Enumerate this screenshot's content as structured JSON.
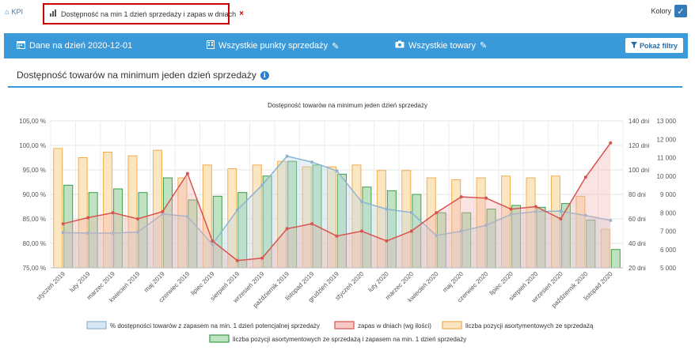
{
  "topbar": {
    "kpi_label": "KPI",
    "tab_label": "Dostępność na min 1 dzień sprzedaży i zapas w dniach",
    "tab_close": "×",
    "colors_label": "Kolory"
  },
  "filterbar": {
    "date_label": "Dane na dzień 2020-12-01",
    "points_label": "Wszystkie punkty sprzedaży",
    "goods_label": "Wszystkie towary",
    "show_filters_label": "Pokaż filtry"
  },
  "section": {
    "title": "Dostępność towarów na minimum jeden dzień sprzedaży"
  },
  "colors": {
    "accent": "#3a9ad9",
    "availability": "#8cb4d0",
    "stock_days": "#d9534f",
    "assortment": "#f0ad4e",
    "assortment_stock": "#3c9c47"
  },
  "chart_data": {
    "type": "bar",
    "title": "Dostępność towarów na minimum jeden dzień sprzedaży",
    "categories": [
      "styczeń 2019",
      "luty 2019",
      "marzec 2019",
      "kwiecień 2019",
      "maj 2019",
      "czerwiec 2019",
      "lipiec 2019",
      "sierpień 2019",
      "wrzesień 2019",
      "październik 2019",
      "listopad 2019",
      "grudzień 2019",
      "styczeń 2020",
      "luty 2020",
      "marzec 2020",
      "kwiecień 2020",
      "maj 2020",
      "czerwiec 2020",
      "lipiec 2020",
      "sierpień 2020",
      "wrzesień 2020",
      "październik 2020",
      "listopad 2020"
    ],
    "y_left": {
      "ylim": [
        75,
        105
      ],
      "ticks": [
        "105,00 %",
        "100,00 %",
        "95,00 %",
        "90,00 %",
        "85,00 %",
        "80,00 %",
        "75,00 %"
      ]
    },
    "y_right_days": {
      "ylim": [
        20,
        140
      ],
      "ticks": [
        "140 dni",
        "120 dni",
        "100 dni",
        "80 dni",
        "60 dni",
        "40 dni",
        "20 dni"
      ]
    },
    "y_right_count": {
      "ylim": [
        5000,
        13000
      ],
      "ticks": [
        "13 000",
        "12 000",
        "11 000",
        "10 000",
        "9 000",
        "8 000",
        "7 000",
        "6 000",
        "5 000"
      ]
    },
    "series": [
      {
        "name": "% dostępności towarów z zapasem na min. 1 dzień potencjalnej sprzedaży",
        "kind": "area",
        "axis": "percent",
        "values": [
          82.2,
          82.1,
          82.1,
          82.3,
          86.0,
          85.5,
          79.8,
          86.8,
          91.9,
          97.8,
          96.6,
          94.8,
          88.5,
          87.0,
          86.3,
          81.6,
          82.5,
          83.7,
          85.9,
          86.5,
          86.6,
          85.7,
          84.7
        ]
      },
      {
        "name": "zapas w dniach (wg ilości)",
        "kind": "area",
        "axis": "days",
        "values": [
          56,
          61,
          65,
          60,
          66,
          97,
          42,
          26,
          28,
          52,
          56,
          46,
          50,
          42,
          50,
          65,
          78,
          77,
          68,
          70,
          60,
          94,
          122
        ]
      },
      {
        "name": "liczba pozycji asortymentowych ze sprzedażą",
        "kind": "bar",
        "axis": "count",
        "values": [
          11500,
          11000,
          11300,
          11100,
          11400,
          9900,
          10600,
          10400,
          10600,
          10800,
          10500,
          10500,
          10600,
          10300,
          10300,
          9900,
          9800,
          9900,
          10000,
          9900,
          10000,
          8900,
          7100
        ]
      },
      {
        "name": "liczba pozycji asortymentowych ze sprzedażą i zapasem na min. 1 dzień sprzedaży",
        "kind": "bar",
        "axis": "count",
        "values": [
          9500,
          9100,
          9300,
          9100,
          9900,
          8700,
          8900,
          9100,
          10000,
          10800,
          10600,
          10100,
          9400,
          9200,
          9000,
          8000,
          8000,
          8200,
          8400,
          8300,
          8500,
          7600,
          6000
        ]
      }
    ],
    "legend_position": "bottom",
    "grid": true
  }
}
